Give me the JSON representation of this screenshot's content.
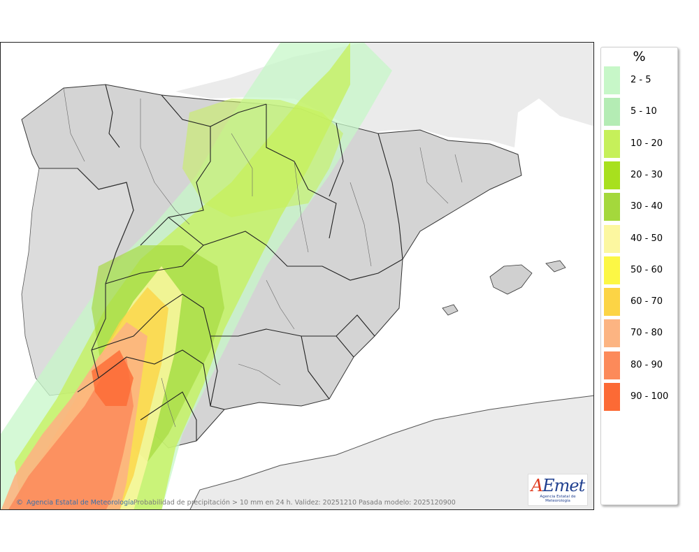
{
  "map": {
    "credit": "Agencia Estatal de Meteorología",
    "credit_symbol": "©",
    "caption": "Probabilidad de precipitación > 10 mm en 24 h. Validez: 20251210 Pasada modelo: 2025120900",
    "logo": {
      "mark_a": "A",
      "mark_rest": "Emet",
      "subtitle": "Agencia Estatal de Meteorología"
    },
    "region": "Iberian Peninsula and Balearic Islands"
  },
  "legend": {
    "title": "%",
    "items": [
      {
        "label": "2 - 5",
        "color": "#c7f7c8"
      },
      {
        "label": "5 - 10",
        "color": "#b4ecb4"
      },
      {
        "label": "10 - 20",
        "color": "#c6f05a"
      },
      {
        "label": "20 - 30",
        "color": "#a8e01e"
      },
      {
        "label": "30 - 40",
        "color": "#a4d83c"
      },
      {
        "label": "40 - 50",
        "color": "#fcf7a0"
      },
      {
        "label": "50 - 60",
        "color": "#fcf745"
      },
      {
        "label": "60 - 70",
        "color": "#fcd445"
      },
      {
        "label": "70 - 80",
        "color": "#fcb482"
      },
      {
        "label": "80 - 90",
        "color": "#fc8a5a"
      },
      {
        "label": "90 - 100",
        "color": "#fc6a35"
      }
    ]
  }
}
